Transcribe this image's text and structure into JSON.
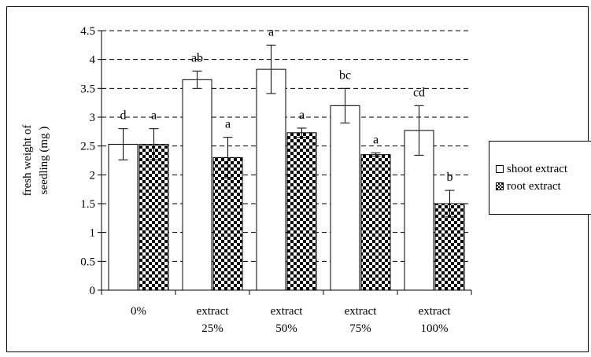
{
  "chart_data": {
    "type": "bar",
    "title": "",
    "xlabel": "",
    "ylabel": "fresh weight of seedling (mg )",
    "ylabel_lines": [
      "fresh weight of",
      "seedling (mg )"
    ],
    "categories": [
      "0%",
      "extract 25%",
      "extract 50%",
      "extract 75%",
      "extract 100%"
    ],
    "category_lines": [
      [
        "0%"
      ],
      [
        "extract",
        "25%"
      ],
      [
        "extract",
        "50%"
      ],
      [
        "extract",
        "75%"
      ],
      [
        "extract",
        "100%"
      ]
    ],
    "ylim": [
      0,
      4.5
    ],
    "yticks": [
      "0",
      "0.5",
      "1",
      "1.5",
      "2",
      "2.5",
      "3",
      "3.5",
      "4",
      "4.5"
    ],
    "grid": "dashed horizontal",
    "legend_position": "right",
    "series": [
      {
        "name": "shoot extract",
        "pattern": "open",
        "values": [
          2.53,
          3.65,
          3.83,
          3.2,
          2.77
        ],
        "errors": [
          0.27,
          0.15,
          0.42,
          0.3,
          0.43
        ],
        "letters": [
          "d",
          "ab",
          "a",
          "bc",
          "cd"
        ]
      },
      {
        "name": "root extract",
        "pattern": "checkered",
        "values": [
          2.53,
          2.3,
          2.73,
          2.35,
          1.5
        ],
        "errors": [
          0.27,
          0.35,
          0.08,
          0.03,
          0.23
        ],
        "letters": [
          "a",
          "a",
          "a",
          "a",
          "b"
        ]
      }
    ]
  },
  "colors": {
    "bar_fill": "#ffffff",
    "checker": "#000000",
    "axis": "#000000",
    "grid": "#000000"
  }
}
